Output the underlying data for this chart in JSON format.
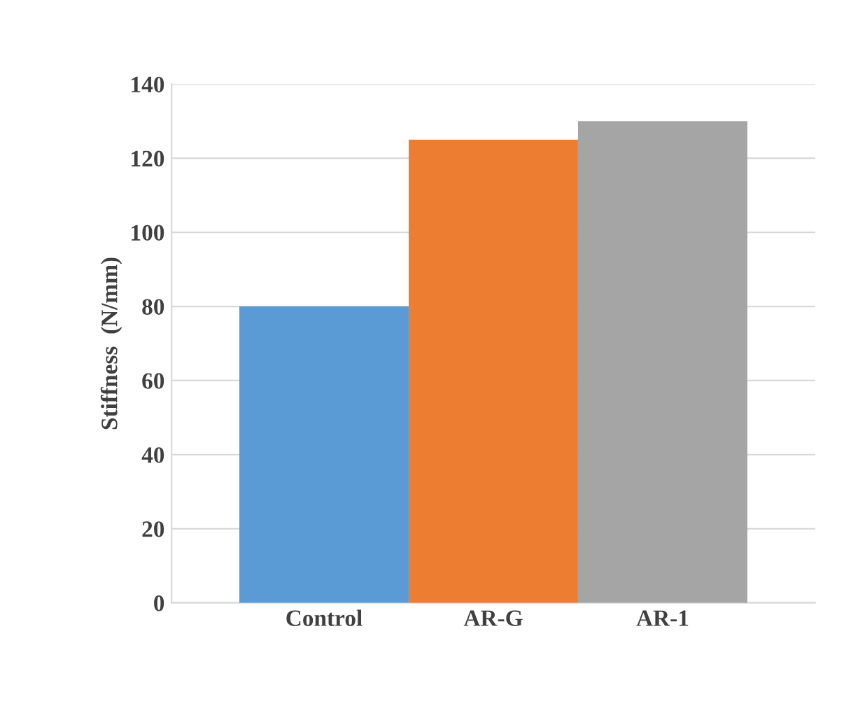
{
  "chart_data": {
    "type": "bar",
    "ylabel": "Stiffness  (N/mm)",
    "categories": [
      "Control",
      "AR-G",
      "AR-1"
    ],
    "values": [
      80,
      125,
      130
    ],
    "colors": [
      "#5b9bd5",
      "#ed7d31",
      "#a5a5a5"
    ],
    "ylim": [
      0,
      140
    ],
    "yticks": [
      0,
      20,
      40,
      60,
      80,
      100,
      120,
      140
    ],
    "grid": "y"
  }
}
